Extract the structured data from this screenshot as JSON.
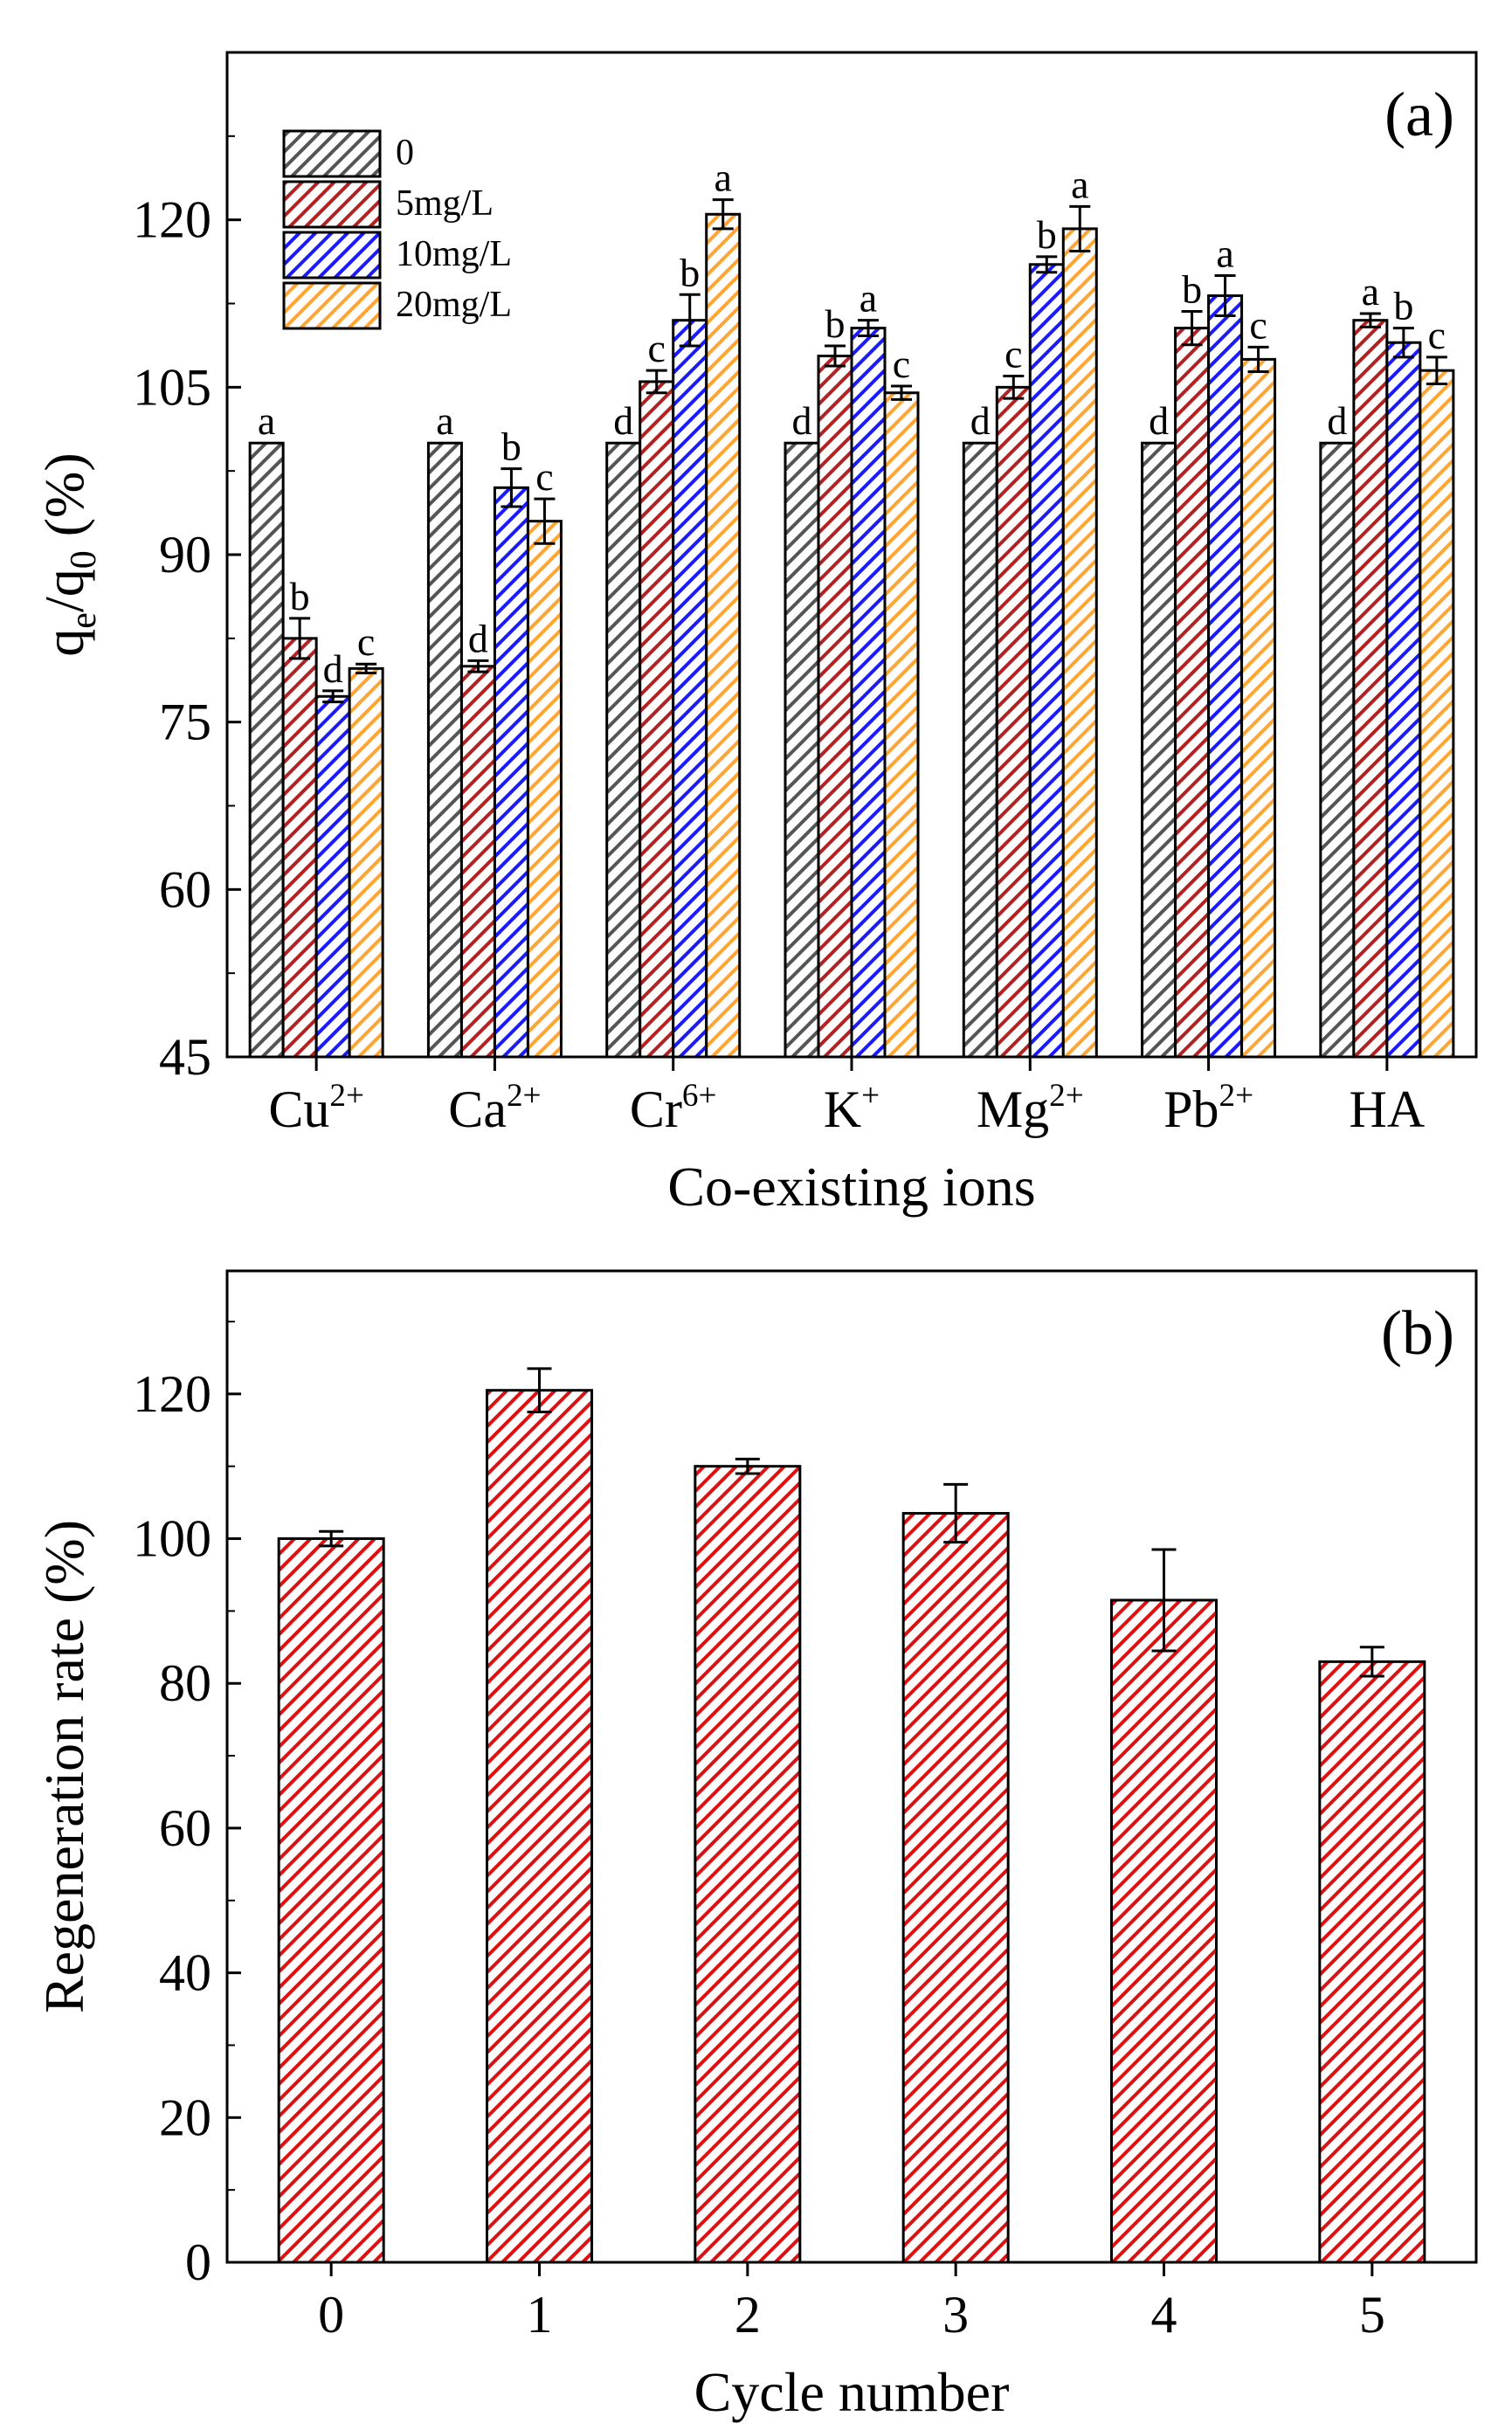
{
  "chart_data": [
    {
      "type": "bar",
      "panel_label": "(a)",
      "xlabel": "Co-existing ions",
      "ylabel": "q_e/q_0 (%)",
      "ylim": [
        45,
        135
      ],
      "yticks": [
        45,
        60,
        75,
        90,
        105,
        120
      ],
      "grid": false,
      "legend_position": "top-left",
      "categories": [
        {
          "base": "Cu",
          "sup": "2+"
        },
        {
          "base": "Ca",
          "sup": "2+"
        },
        {
          "base": "Cr",
          "sup": "6+"
        },
        {
          "base": "K",
          "sup": "+"
        },
        {
          "base": "Mg",
          "sup": "2+"
        },
        {
          "base": "Pb",
          "sup": "2+"
        },
        {
          "base": "HA",
          "sup": ""
        }
      ],
      "series": [
        {
          "name": "0",
          "color": "#555555",
          "values": [
            100,
            100,
            100,
            100,
            100,
            100,
            100
          ],
          "errors": [
            0,
            0,
            0,
            0,
            0,
            0,
            0
          ],
          "letters": [
            "a",
            "a",
            "d",
            "d",
            "d",
            "d",
            "d"
          ]
        },
        {
          "name": "5mg/L",
          "color": "#b22222",
          "values": [
            82.5,
            80,
            105.5,
            107.8,
            105,
            110.3,
            111
          ],
          "errors": [
            1.8,
            0.5,
            1,
            0.9,
            1,
            1.5,
            0.6
          ],
          "letters": [
            "b",
            "d",
            "c",
            "b",
            "c",
            "b",
            "a"
          ]
        },
        {
          "name": "10mg/L",
          "color": "#1a1aff",
          "values": [
            77.3,
            96,
            111,
            110.3,
            116,
            113.2,
            109
          ],
          "errors": [
            0.5,
            1.7,
            2.3,
            0.7,
            0.7,
            1.8,
            1.3
          ],
          "letters": [
            "d",
            "b",
            "b",
            "a",
            "b",
            "a",
            "b"
          ]
        },
        {
          "name": "20mg/L",
          "color": "#ffa533",
          "values": [
            79.8,
            93,
            120.5,
            104.5,
            119.2,
            107.5,
            106.5
          ],
          "errors": [
            0.4,
            2,
            1.3,
            0.6,
            2,
            1.1,
            1.2
          ],
          "letters": [
            "c",
            "c",
            "a",
            "c",
            "a",
            "c",
            "c"
          ]
        }
      ]
    },
    {
      "type": "bar",
      "panel_label": "(b)",
      "xlabel": "Cycle number",
      "ylabel": "Regeneration rate (%)",
      "ylim": [
        0,
        137
      ],
      "yticks": [
        0,
        20,
        40,
        60,
        80,
        100,
        120
      ],
      "grid": false,
      "categories": [
        "0",
        "1",
        "2",
        "3",
        "4",
        "5"
      ],
      "series": [
        {
          "color": "#dd1111",
          "values": [
            100,
            120.5,
            110,
            103.5,
            91.5,
            83
          ],
          "errors": [
            1,
            3,
            1,
            4,
            7,
            2
          ]
        }
      ]
    }
  ]
}
